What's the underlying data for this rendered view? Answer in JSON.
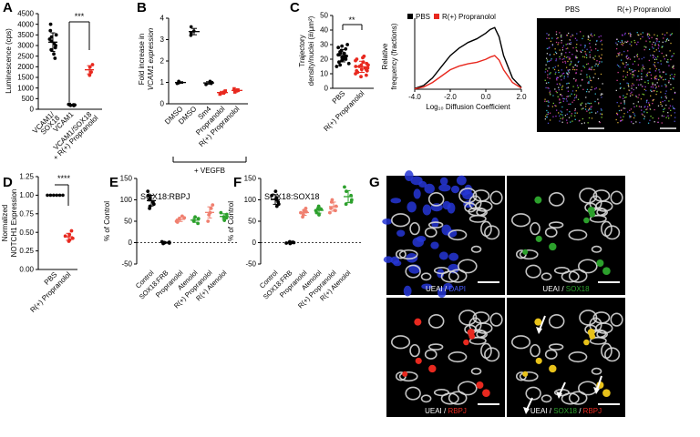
{
  "colors": {
    "black": "#000000",
    "red": "#e8291f",
    "salmon": "#f08070",
    "green": "#2ca02c",
    "blue": "#1f2fd9",
    "yellow": "#e8c21a",
    "white": "#ffffff"
  },
  "panels": {
    "A": {
      "letter": "A",
      "ylabel": "Luminescence (cps)",
      "yticks": [
        "0",
        "500",
        "1000",
        "1500",
        "2000",
        "2500",
        "3000",
        "3500",
        "4000",
        "4500"
      ],
      "cats": [
        "VCAM1/\nSOX18",
        "VCAM1",
        "VCAM1/SOX18\n+ R(+) Propranolol"
      ],
      "sig": "***"
    },
    "B": {
      "letter": "B",
      "ylabel1": "Fold increase in",
      "ylabel2": "VCAM1 expression",
      "yticks": [
        "0",
        "1",
        "2",
        "3",
        "4"
      ],
      "cats": [
        "DMSO",
        "DMSO",
        "Sm4",
        "Propranolol",
        "R(+) Propranolol"
      ],
      "bracket": "+ VEGFB"
    },
    "C": {
      "letter": "C",
      "ylabel1": "Trajectory",
      "ylabel2": "density/nuclei (#/µm²)",
      "yticks": [
        "0",
        "10",
        "20",
        "30",
        "40",
        "50"
      ],
      "cats": [
        "PBS",
        "R(+) Propranolol"
      ],
      "sig": "**",
      "line_ylabel1": "Relative",
      "line_ylabel2": "frequency (fractions)",
      "line_xlabel": "Log₁₀ Diffusion Coefficient",
      "line_xticks": [
        "-4.0",
        "-2.0",
        "0.0",
        "2.0"
      ],
      "line_xticks_pos": [
        "2.0"
      ],
      "legend": [
        "PBS",
        "R(+) Propranolol"
      ],
      "img_labels": [
        "PBS",
        "R(+) Propranolol"
      ]
    },
    "D": {
      "letter": "D",
      "ylabel1": "Normalized",
      "ylabel2": "NOTCH1 Expression",
      "yticks": [
        "0.00",
        "0.25",
        "0.50",
        "0.75",
        "1.00",
        "1.25"
      ],
      "cats": [
        "PBS",
        "R(+) Propranolol"
      ],
      "sig": "****"
    },
    "E": {
      "letter": "E",
      "title": "SOX18:RBPJ",
      "ylabel": "% of Control",
      "yticks": [
        "-50",
        "0",
        "50",
        "100",
        "150"
      ],
      "cats": [
        "Control",
        "SOX18:FRB",
        "Propranolol",
        "Atenolol",
        "R(+) Propranolol",
        "R(+) Atenolol"
      ]
    },
    "F": {
      "letter": "F",
      "title": "SOX18:SOX18",
      "ylabel": "% of Control",
      "yticks": [
        "-50",
        "0",
        "50",
        "100",
        "150"
      ],
      "cats": [
        "Control",
        "SOX18:FRB",
        "Propranolol",
        "Atenolol",
        "R(+) Propranolol",
        "R(+) Atenolol"
      ]
    },
    "G": {
      "letter": "G",
      "captions": [
        [
          {
            "t": "UEAI / ",
            "c": "#ffffff"
          },
          {
            "t": "DAPI",
            "c": "#4a5cff"
          }
        ],
        [
          {
            "t": "UEAI / ",
            "c": "#ffffff"
          },
          {
            "t": "SOX18",
            "c": "#2ca02c"
          }
        ],
        [
          {
            "t": "UEAI / ",
            "c": "#ffffff"
          },
          {
            "t": "RBPJ",
            "c": "#e8291f"
          }
        ],
        [
          {
            "t": "UEAI / ",
            "c": "#ffffff"
          },
          {
            "t": "SOX18",
            "c": "#2ca02c"
          },
          {
            "t": " / ",
            "c": "#ffffff"
          },
          {
            "t": "RBPJ",
            "c": "#e8291f"
          }
        ]
      ]
    }
  },
  "chart_data": [
    {
      "type": "scatter",
      "panel": "A",
      "ylabel": "Luminescence (cps)",
      "ylim": [
        0,
        4500
      ],
      "categories": [
        "VCAM1/SOX18",
        "VCAM1",
        "VCAM1/SOX18 + R(+) Propranolol"
      ],
      "series": [
        {
          "values": [
            [
              3100,
              3500,
              2800,
              3300,
              4000,
              2400,
              3700,
              3200,
              2900,
              3400,
              2600,
              3000
            ],
            [
              210,
              190,
              230,
              180,
              220,
              200,
              170,
              240
            ],
            [
              1750,
              1980,
              2100,
              1600
            ]
          ]
        }
      ]
    },
    {
      "type": "scatter",
      "panel": "B",
      "ylabel": "Fold increase in VCAM1 expression",
      "ylim": [
        0,
        4
      ],
      "categories": [
        "DMSO",
        "DMSO",
        "Sm4",
        "Propranolol",
        "R(+) Propranolol"
      ],
      "series": [
        {
          "values": [
            [
              0.95,
              1.05,
              1.0,
              0.98
            ],
            [
              3.6,
              3.3,
              3.2,
              3.4
            ],
            [
              0.9,
              1.0,
              0.95,
              1.05
            ],
            [
              0.45,
              0.55,
              0.5,
              0.6
            ],
            [
              0.55,
              0.65,
              0.6,
              0.7
            ]
          ]
        }
      ]
    },
    {
      "type": "scatter",
      "panel": "C",
      "ylabel": "Trajectory density/nuclei (#/µm²)",
      "ylim": [
        0,
        50
      ],
      "categories": [
        "PBS",
        "R(+) Propranolol"
      ],
      "series": [
        {
          "values": [
            [
              21,
              24,
              18,
              26,
              28,
              15,
              22,
              20,
              30,
              17,
              25,
              23,
              19,
              27,
              16,
              21,
              24,
              22,
              20,
              29
            ],
            [
              13,
              16,
              10,
              18,
              20,
              12,
              15,
              8,
              22,
              14,
              17,
              11,
              19,
              13,
              16,
              9,
              14,
              21,
              12,
              15
            ]
          ]
        }
      ]
    },
    {
      "type": "line",
      "panel": "C",
      "xlabel": "Log₁₀ Diffusion Coefficient",
      "xlim": [
        -4,
        2
      ],
      "ylabel": "Relative frequency (fractions)",
      "series": [
        {
          "name": "PBS",
          "x": [
            -4,
            -3.5,
            -3,
            -2.5,
            -2,
            -1.5,
            -1,
            -0.5,
            0,
            0.25,
            0.5,
            0.75,
            1,
            1.5,
            2
          ],
          "values": [
            0.002,
            0.01,
            0.03,
            0.06,
            0.09,
            0.11,
            0.125,
            0.135,
            0.15,
            0.16,
            0.165,
            0.14,
            0.09,
            0.03,
            0.005
          ]
        },
        {
          "name": "R(+) Propranolol",
          "x": [
            -4,
            -3.5,
            -3,
            -2.5,
            -2,
            -1.5,
            -1,
            -0.5,
            0,
            0.25,
            0.5,
            0.75,
            1,
            1.5,
            2
          ],
          "values": [
            0.001,
            0.006,
            0.018,
            0.035,
            0.052,
            0.062,
            0.068,
            0.072,
            0.08,
            0.086,
            0.09,
            0.078,
            0.052,
            0.018,
            0.003
          ]
        }
      ]
    },
    {
      "type": "scatter",
      "panel": "D",
      "ylabel": "Normalized NOTCH1 Expression",
      "ylim": [
        0,
        1.25
      ],
      "categories": [
        "PBS",
        "R(+) Propranolol"
      ],
      "series": [
        {
          "values": [
            [
              1,
              1,
              1,
              1,
              1,
              1
            ],
            [
              0.52,
              0.42,
              0.45,
              0.38,
              0.47,
              0.4
            ]
          ]
        }
      ]
    },
    {
      "type": "scatter",
      "panel": "E",
      "title": "SOX18:RBPJ",
      "ylabel": "% of Control",
      "ylim": [
        -50,
        150
      ],
      "categories": [
        "Control",
        "SOX18:FRB",
        "Propranolol",
        "Atenolol",
        "R(+) Propranolol",
        "R(+) Atenolol"
      ],
      "series": [
        {
          "values": [
            [
              100,
              85,
              110,
              95,
              120,
              80,
              105,
              90
            ],
            [
              0,
              -2,
              1,
              -1,
              2,
              0
            ],
            [
              55,
              50,
              62,
              48,
              58
            ],
            [
              52,
              45,
              60,
              50,
              56
            ],
            [
              65,
              80,
              50,
              70,
              88
            ],
            [
              60,
              52,
              70,
              58,
              66
            ]
          ]
        }
      ]
    },
    {
      "type": "scatter",
      "panel": "F",
      "title": "SOX18:SOX18",
      "ylabel": "% of Control",
      "ylim": [
        -50,
        150
      ],
      "categories": [
        "Control",
        "SOX18:FRB",
        "Propranolol",
        "Atenolol",
        "R(+) Propranolol",
        "R(+) Atenolol"
      ],
      "series": [
        {
          "values": [
            [
              100,
              85,
              110,
              95,
              120,
              90,
              105
            ],
            [
              0,
              -2,
              1,
              -1,
              2,
              0
            ],
            [
              72,
              65,
              80,
              60,
              75,
              70
            ],
            [
              78,
              70,
              85,
              65,
              80,
              75
            ],
            [
              85,
              70,
              95,
              75,
              100,
              80
            ],
            [
              110,
              95,
              130,
              100,
              120,
              90
            ]
          ]
        }
      ]
    }
  ]
}
